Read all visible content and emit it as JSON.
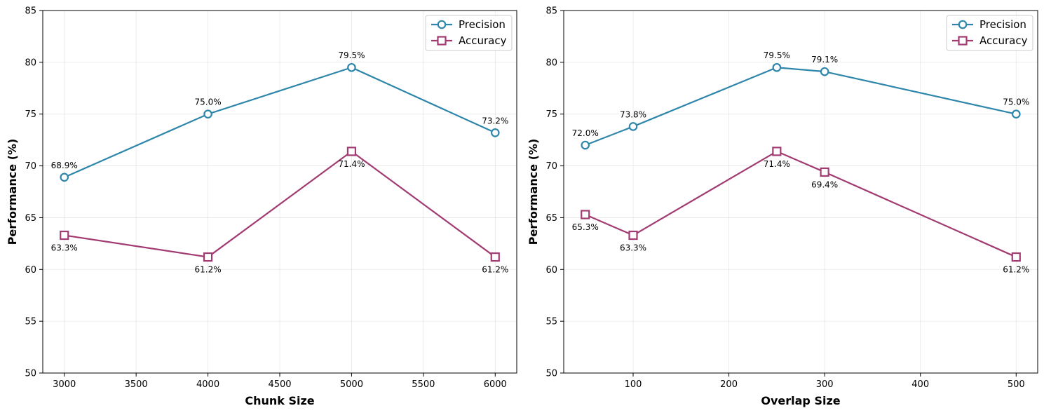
{
  "chart_data": [
    {
      "type": "line",
      "xlabel": "Chunk Size",
      "ylabel": "Performance (%)",
      "xlim": [
        2850,
        6150
      ],
      "ylim": [
        50,
        85
      ],
      "xticks": [
        3000,
        3500,
        4000,
        4500,
        5000,
        5500,
        6000
      ],
      "yticks": [
        50,
        55,
        60,
        65,
        70,
        75,
        80,
        85
      ],
      "grid": true,
      "legend_position": "top-right",
      "series": [
        {
          "name": "Precision",
          "color": "#2e86ab",
          "marker": "circle",
          "x": [
            3000,
            4000,
            5000,
            6000
          ],
          "values": [
            68.9,
            75.0,
            79.5,
            73.2
          ],
          "labels": [
            "68.9%",
            "75.0%",
            "79.5%",
            "73.2%"
          ],
          "label_position": "above"
        },
        {
          "name": "Accuracy",
          "color": "#a23b72",
          "marker": "square",
          "x": [
            3000,
            4000,
            5000,
            6000
          ],
          "values": [
            63.3,
            61.2,
            71.4,
            61.2
          ],
          "labels": [
            "63.3%",
            "61.2%",
            "71.4%",
            "61.2%"
          ],
          "label_position": "below"
        }
      ]
    },
    {
      "type": "line",
      "xlabel": "Overlap Size",
      "ylabel": "Performance (%)",
      "xlim": [
        27.5,
        522.5
      ],
      "ylim": [
        50,
        85
      ],
      "xticks": [
        100,
        200,
        300,
        400,
        500
      ],
      "yticks": [
        50,
        55,
        60,
        65,
        70,
        75,
        80,
        85
      ],
      "grid": true,
      "legend_position": "top-right",
      "series": [
        {
          "name": "Precision",
          "color": "#2e86ab",
          "marker": "circle",
          "x": [
            50,
            100,
            250,
            300,
            500
          ],
          "values": [
            72.0,
            73.8,
            79.5,
            79.1,
            75.0
          ],
          "labels": [
            "72.0%",
            "73.8%",
            "79.5%",
            "79.1%",
            "75.0%"
          ],
          "label_position": "above"
        },
        {
          "name": "Accuracy",
          "color": "#a23b72",
          "marker": "square",
          "x": [
            50,
            100,
            250,
            300,
            500
          ],
          "values": [
            65.3,
            63.3,
            71.4,
            69.4,
            61.2
          ],
          "labels": [
            "65.3%",
            "63.3%",
            "71.4%",
            "69.4%",
            "61.2%"
          ],
          "label_position": "below"
        }
      ]
    }
  ]
}
